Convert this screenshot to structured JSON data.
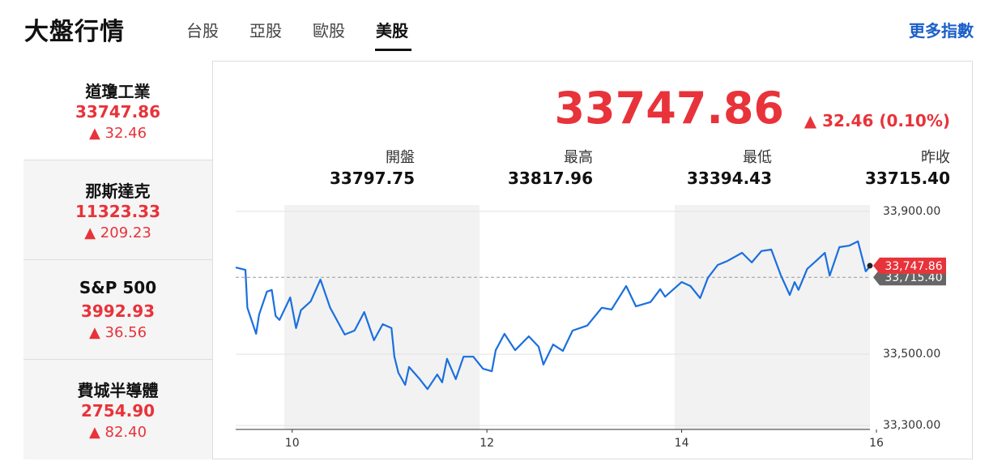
{
  "header": {
    "title": "大盤行情",
    "tabs": [
      "台股",
      "亞股",
      "歐股",
      "美股"
    ],
    "more_link": "更多指數"
  },
  "indices": [
    {
      "name": "道瓊工業",
      "value": "33747.86",
      "change": "32.46"
    },
    {
      "name": "那斯達克",
      "value": "11323.33",
      "change": "209.23"
    },
    {
      "name": "S&P 500",
      "value": "3992.93",
      "change": "36.56"
    },
    {
      "name": "費城半導體",
      "value": "2754.90",
      "change": "82.40"
    }
  ],
  "quote": {
    "value": "33747.86",
    "change": "32.46 (0.10%)"
  },
  "stats": [
    {
      "label": "開盤",
      "value": "33797.75"
    },
    {
      "label": "最高",
      "value": "33817.96"
    },
    {
      "label": "最低",
      "value": "33394.43"
    },
    {
      "label": "昨收",
      "value": "33715.40"
    }
  ],
  "chart_data": {
    "type": "line",
    "color": "#1a6fe0",
    "x": [
      9.42,
      9.52,
      9.54,
      9.63,
      9.66,
      9.74,
      9.79,
      9.83,
      9.87,
      9.98,
      10.04,
      10.09,
      10.19,
      10.29,
      10.39,
      10.54,
      10.64,
      10.74,
      10.84,
      10.93,
      11.02,
      11.05,
      11.09,
      11.16,
      11.2,
      11.31,
      11.39,
      11.49,
      11.54,
      11.59,
      11.68,
      11.76,
      11.86,
      11.96,
      12.05,
      12.09,
      12.18,
      12.29,
      12.43,
      12.53,
      12.58,
      12.68,
      12.78,
      12.88,
      13.03,
      13.18,
      13.28,
      13.43,
      13.53,
      13.68,
      13.78,
      13.83,
      14.0,
      14.09,
      14.19,
      14.27,
      14.37,
      14.47,
      14.62,
      14.72,
      14.82,
      14.92,
      15.02,
      15.11,
      15.16,
      15.2,
      15.29,
      15.38,
      15.47,
      15.52,
      15.62,
      15.72,
      15.81,
      15.89,
      15.94
    ],
    "values": [
      33743,
      33736,
      33630,
      33557,
      33611,
      33675,
      33680,
      33607,
      33596,
      33659,
      33573,
      33623,
      33648,
      33709,
      33630,
      33555,
      33566,
      33618,
      33539,
      33584,
      33573,
      33493,
      33448,
      33414,
      33464,
      33430,
      33402,
      33443,
      33421,
      33487,
      33430,
      33493,
      33493,
      33459,
      33452,
      33511,
      33557,
      33511,
      33550,
      33521,
      33471,
      33527,
      33509,
      33566,
      33580,
      33630,
      33625,
      33691,
      33634,
      33646,
      33682,
      33661,
      33702,
      33691,
      33657,
      33714,
      33750,
      33761,
      33784,
      33757,
      33789,
      33793,
      33720,
      33666,
      33702,
      33680,
      33739,
      33761,
      33784,
      33720,
      33800,
      33804,
      33816,
      33732,
      33748
    ],
    "xlim": [
      9.42,
      16
    ],
    "ylim": [
      33289,
      33918
    ],
    "xticks": [
      10,
      12,
      14,
      16
    ],
    "yticks": [
      {
        "value": 33300,
        "label": "33,300.00"
      },
      {
        "value": 33500,
        "label": "33,500.00"
      },
      {
        "value": 33900,
        "label": "33,900.00"
      }
    ],
    "reference": {
      "value": 33715.4,
      "label": "33,715.40"
    },
    "last": {
      "value": 33747.86,
      "label": "33,747.86"
    }
  }
}
